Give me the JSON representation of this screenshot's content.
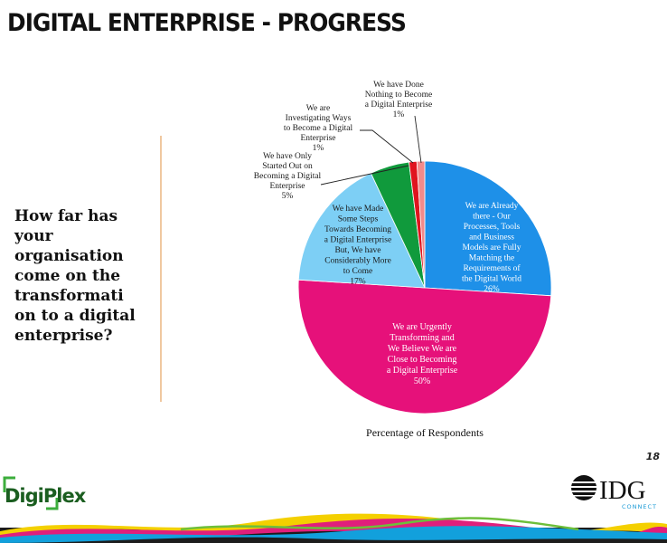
{
  "slide": {
    "title": "DIGITAL ENTERPRISE - PROGRESS",
    "question_lines": [
      "How far has",
      "your",
      "organisation",
      "come on the",
      "transformati",
      "on to a digital",
      "enterprise?"
    ],
    "page_number": "18"
  },
  "logos": {
    "left": "DigiPlex",
    "right": "IDG",
    "right_sub": "CONNECT"
  },
  "chart_data": {
    "type": "pie",
    "xlabel": "Percentage of Respondents",
    "slices": [
      {
        "label_lines": [
          "We are Already",
          "there - Our",
          "Processes, Tools",
          "and Business",
          "Models are Fully",
          "Matching the",
          "Requirements of",
          "the Digital World",
          "26%"
        ],
        "value": 26,
        "color": "#1e90e8"
      },
      {
        "label_lines": [
          "We are Urgently",
          "Transforming and",
          "We Believe We are",
          "Close to Becoming",
          "a Digital Enterprise",
          "50%"
        ],
        "value": 50,
        "color": "#e6117a"
      },
      {
        "label_lines": [
          "We have Made",
          "Some Steps",
          "Towards Becoming",
          "a Digital Enterprise",
          "But, We have",
          "Considerably More",
          "to Come",
          "17%"
        ],
        "value": 17,
        "color": "#7dcff5"
      },
      {
        "label_lines": [
          "We have Only",
          "Started Out on",
          "Becoming a Digital",
          "Enterprise",
          "5%"
        ],
        "value": 5,
        "color": "#109a3c"
      },
      {
        "label_lines": [
          "We are",
          "Investigating Ways",
          "to Become a Digital",
          "Enterprise",
          "1%"
        ],
        "value": 1,
        "color": "#e0141e"
      },
      {
        "label_lines": [
          "We have Done",
          "Nothing to Become",
          "a Digital Enterprise",
          "1%"
        ],
        "value": 1,
        "color": "#f28a8a"
      }
    ]
  }
}
